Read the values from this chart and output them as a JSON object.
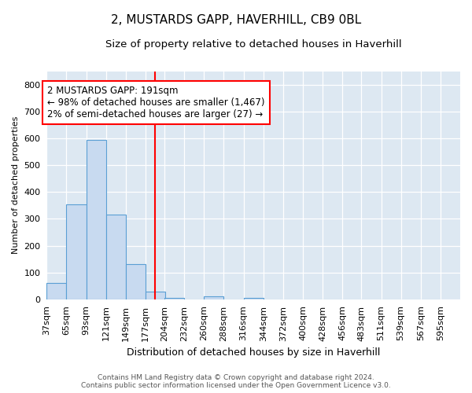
{
  "title": "2, MUSTARDS GAPP, HAVERHILL, CB9 0BL",
  "subtitle": "Size of property relative to detached houses in Haverhill",
  "xlabel": "Distribution of detached houses by size in Haverhill",
  "ylabel": "Number of detached properties",
  "footer_line1": "Contains HM Land Registry data © Crown copyright and database right 2024.",
  "footer_line2": "Contains public sector information licensed under the Open Government Licence v3.0.",
  "bin_edges": [
    37,
    65,
    93,
    121,
    149,
    177,
    204,
    232,
    260,
    288,
    316,
    344,
    372,
    400,
    428,
    456,
    483,
    511,
    539,
    567,
    595
  ],
  "bar_heights": [
    60,
    355,
    595,
    315,
    130,
    30,
    5,
    0,
    10,
    0,
    5,
    0,
    0,
    0,
    0,
    0,
    0,
    0,
    0,
    0
  ],
  "bar_color": "#c8daf0",
  "bar_edge_color": "#5a9fd4",
  "vline_x": 191,
  "vline_color": "red",
  "annotation_line1": "2 MUSTARDS GAPP: 191sqm",
  "annotation_line2": "← 98% of detached houses are smaller (1,467)",
  "annotation_line3": "2% of semi-detached houses are larger (27) →",
  "ylim": [
    0,
    850
  ],
  "yticks": [
    0,
    100,
    200,
    300,
    400,
    500,
    600,
    700,
    800
  ],
  "bg_color": "#dde8f2",
  "title_fontsize": 11,
  "subtitle_fontsize": 9.5,
  "tick_label_fontsize": 8,
  "ylabel_fontsize": 8,
  "xlabel_fontsize": 9,
  "annotation_fontsize": 8.5,
  "footer_fontsize": 6.5
}
